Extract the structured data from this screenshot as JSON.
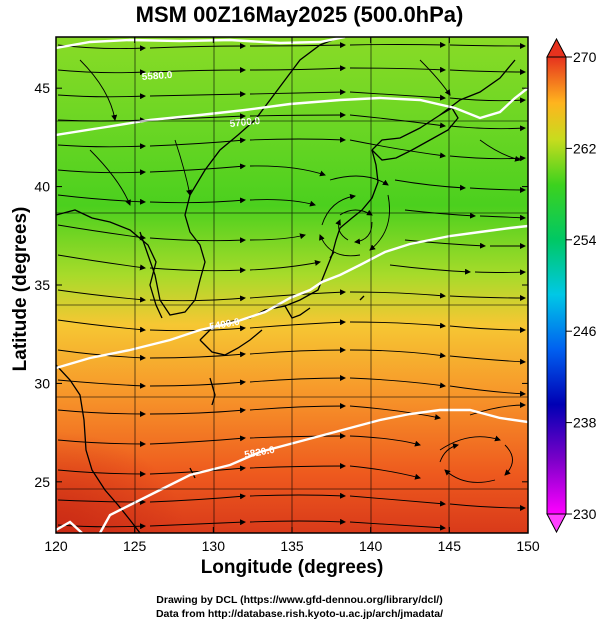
{
  "title": "MSM 00Z16May2025 (500.0hPa)",
  "xlabel": "Longitude (degrees)",
  "ylabel": "Latitude  (degrees)",
  "credit_line1": "Drawing by DCL (https://www.gfd-dennou.org/library/dcl/)",
  "credit_line2": "Data from http://database.rish.kyoto-u.ac.jp/arch/jmadata/",
  "chart_data": {
    "type": "heatmap",
    "variable": "temperature (K) at 500 hPa with wind streamlines",
    "x_range": [
      120,
      150
    ],
    "y_range": [
      22.4,
      47.6
    ],
    "x_ticks": [
      120,
      125,
      130,
      135,
      140,
      145,
      150
    ],
    "y_ticks": [
      25,
      30,
      35,
      40,
      45
    ],
    "grid": true,
    "colorbar": {
      "min": 230,
      "max": 270,
      "ticks": [
        230,
        238,
        246,
        254,
        262,
        270
      ],
      "placement": "right"
    },
    "contour_labels": [
      "5700.0",
      "5400.0",
      "5580.0",
      "5820.0"
    ],
    "contour_color": "#ffffff"
  }
}
